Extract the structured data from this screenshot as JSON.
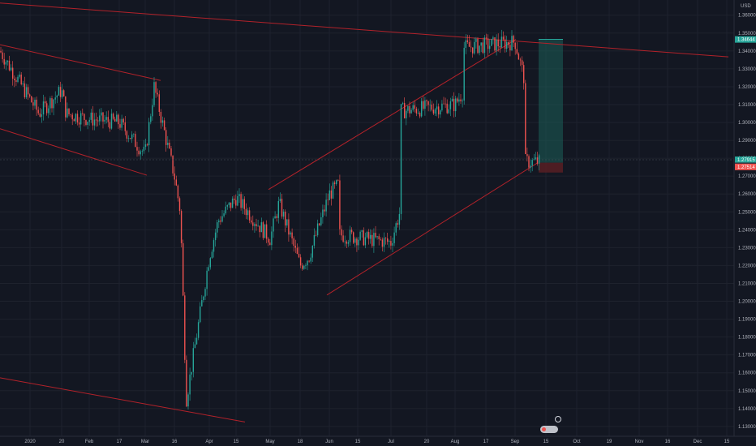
{
  "chart_data": {
    "type": "candlestick",
    "title": "",
    "currency_label": "USD",
    "y_ticks": [
      "1.36000",
      "1.35000",
      "1.34000",
      "1.33000",
      "1.32000",
      "1.31000",
      "1.30000",
      "1.29000",
      "1.28000",
      "1.27000",
      "1.26000",
      "1.25000",
      "1.24000",
      "1.23000",
      "1.22000",
      "1.21000",
      "1.20000",
      "1.19000",
      "1.18000",
      "1.17000",
      "1.16000",
      "1.15000",
      "1.14000",
      "1.13000"
    ],
    "x_ticks": [
      "2020",
      "20",
      "Feb",
      "17",
      "Mar",
      "16",
      "Apr",
      "15",
      "May",
      "18",
      "Jun",
      "15",
      "Jul",
      "20",
      "Aug",
      "17",
      "Sep",
      "15",
      "Oct",
      "19",
      "Nov",
      "16",
      "Dec",
      "15"
    ],
    "ylim": [
      1.1245,
      1.3685
    ],
    "price_badges": [
      {
        "label": "1.34644",
        "value": 1.34644,
        "color": "#26a69a"
      },
      {
        "label": "1.27915",
        "value": 1.27915,
        "color": "#26a69a"
      },
      {
        "label": "1.27576",
        "value": 1.27576,
        "color": "#2a2e39"
      },
      {
        "label": "1.27514",
        "value": 1.27514,
        "color": "#ef5350"
      }
    ],
    "series": [
      {
        "anchors": [
          [
            "2020",
            1.34
          ],
          [
            "2020",
            1.305
          ],
          [
            "20",
            1.318
          ],
          [
            "20",
            1.305
          ],
          [
            "Feb",
            1.302
          ],
          [
            "17",
            1.3
          ],
          [
            "Mar",
            1.282
          ],
          [
            "Mar",
            1.32
          ],
          [
            "16",
            1.27
          ],
          [
            "16",
            1.25
          ],
          [
            "16",
            1.145
          ],
          [
            "Apr",
            1.225
          ],
          [
            "Apr",
            1.245
          ],
          [
            "15",
            1.258
          ],
          [
            "May",
            1.235
          ],
          [
            "May",
            1.255
          ],
          [
            "18",
            1.22
          ],
          [
            "18",
            1.225
          ],
          [
            "Jun",
            1.26
          ],
          [
            "Jun",
            1.265
          ],
          [
            "15",
            1.253
          ],
          [
            "15",
            1.245
          ],
          [
            "Jul",
            1.233
          ],
          [
            "Jul",
            1.25
          ],
          [
            "20",
            1.27
          ],
          [
            "20",
            1.285
          ],
          [
            "Aug",
            1.31
          ],
          [
            "Aug",
            1.318
          ],
          [
            "17",
            1.305
          ],
          [
            "17",
            1.322
          ],
          [
            "Sep",
            1.345
          ],
          [
            "Sep",
            1.325
          ],
          [
            "15",
            1.278
          ]
        ]
      }
    ],
    "trend_lines": [
      {
        "from": [
          "2020",
          1.3668
        ],
        "to": [
          "Dec",
          1.3367
        ],
        "color": "#b2222a"
      },
      {
        "from": [
          "2020",
          1.3435
        ],
        "to": [
          "Mar",
          1.3235
        ],
        "color": "#b2222a"
      },
      {
        "from": [
          "2020",
          1.2965
        ],
        "to": [
          "Mar",
          1.2705
        ],
        "color": "#b2222a"
      },
      {
        "from": [
          "2020",
          1.1572
        ],
        "to": [
          "Apr",
          1.1325
        ],
        "color": "#b2222a"
      },
      {
        "from": [
          "May",
          1.2625
        ],
        "to": [
          "Sep",
          1.3465
        ],
        "color": "#b2222a"
      },
      {
        "from": [
          "18",
          1.2035
        ],
        "to": [
          "15",
          1.2775
        ],
        "color": "#b2222a"
      }
    ],
    "position_box": {
      "entry": 1.2775,
      "target": 1.3465,
      "stop": 1.272
    },
    "legend": "none",
    "grid": true
  }
}
